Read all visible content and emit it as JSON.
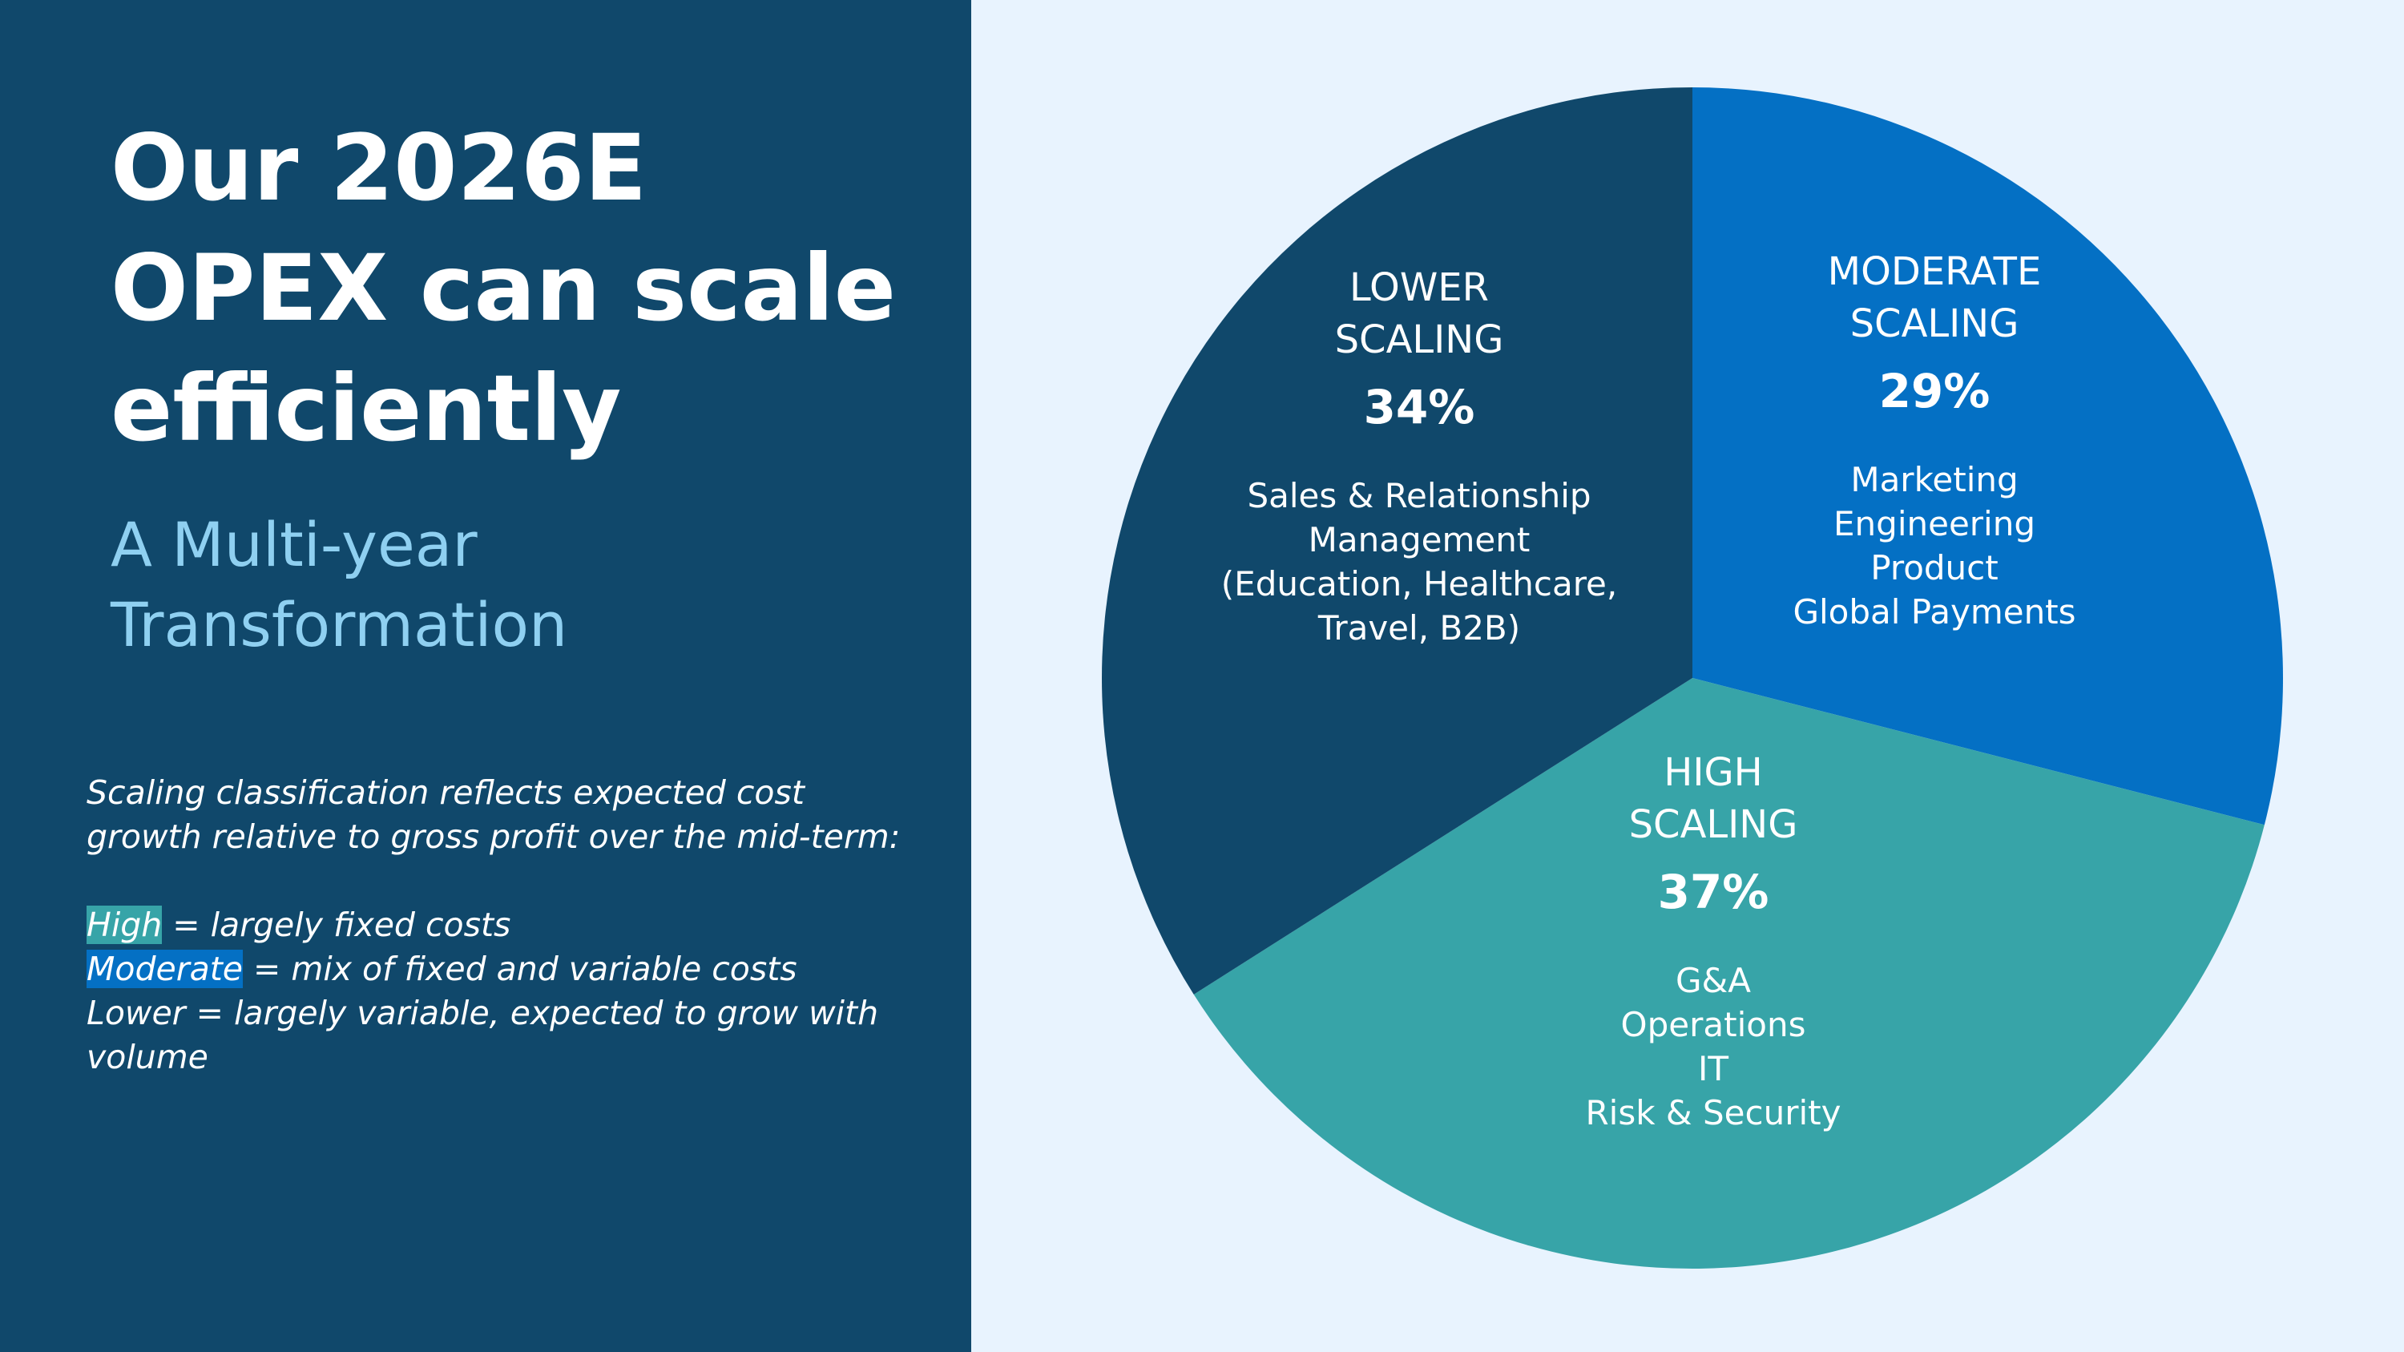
{
  "slide": {
    "title_lines": [
      "Our 2026E",
      "OPEX can scale",
      "efficiently"
    ],
    "subtitle_lines": [
      "A Multi-year",
      "Transformation"
    ],
    "notes": {
      "intro_lines": [
        "Scaling classification reflects expected cost",
        "growth relative to gross profit over the mid-term:"
      ],
      "high_term": "High",
      "high_rest": " =  largely fixed costs",
      "moderate_term": "Moderate",
      "moderate_rest": " = mix of fixed and variable costs",
      "lower_lines": [
        "Lower = largely variable, expected to grow with",
        "volume"
      ]
    }
  },
  "colors": {
    "left_background": "#10486b",
    "right_background": "#e8f3fe",
    "lower": "#10486b",
    "moderate": "#0470c4",
    "high": "#37a4a8",
    "subtitle": "#8fd0f1"
  },
  "chart_data": {
    "type": "pie",
    "start_angle_deg": 0,
    "direction": "clockwise",
    "slices": [
      {
        "key": "moderate",
        "name_lines": [
          "MODERATE",
          "SCALING"
        ],
        "value": 29,
        "label": "29%",
        "items": [
          "Marketing",
          "Engineering",
          "Product",
          "Global Payments"
        ],
        "color": "#0470c4"
      },
      {
        "key": "high",
        "name_lines": [
          "HIGH",
          "SCALING"
        ],
        "value": 37,
        "label": "37%",
        "items": [
          "G&A",
          "Operations",
          "IT",
          "Risk & Security"
        ],
        "color": "#37a4a8"
      },
      {
        "key": "lower",
        "name_lines": [
          "LOWER",
          "SCALING"
        ],
        "value": 34,
        "label": "34%",
        "items": [
          "Sales & Relationship",
          "Management",
          "(Education, Healthcare,",
          "Travel, B2B)"
        ],
        "color": "#10486b"
      }
    ]
  }
}
